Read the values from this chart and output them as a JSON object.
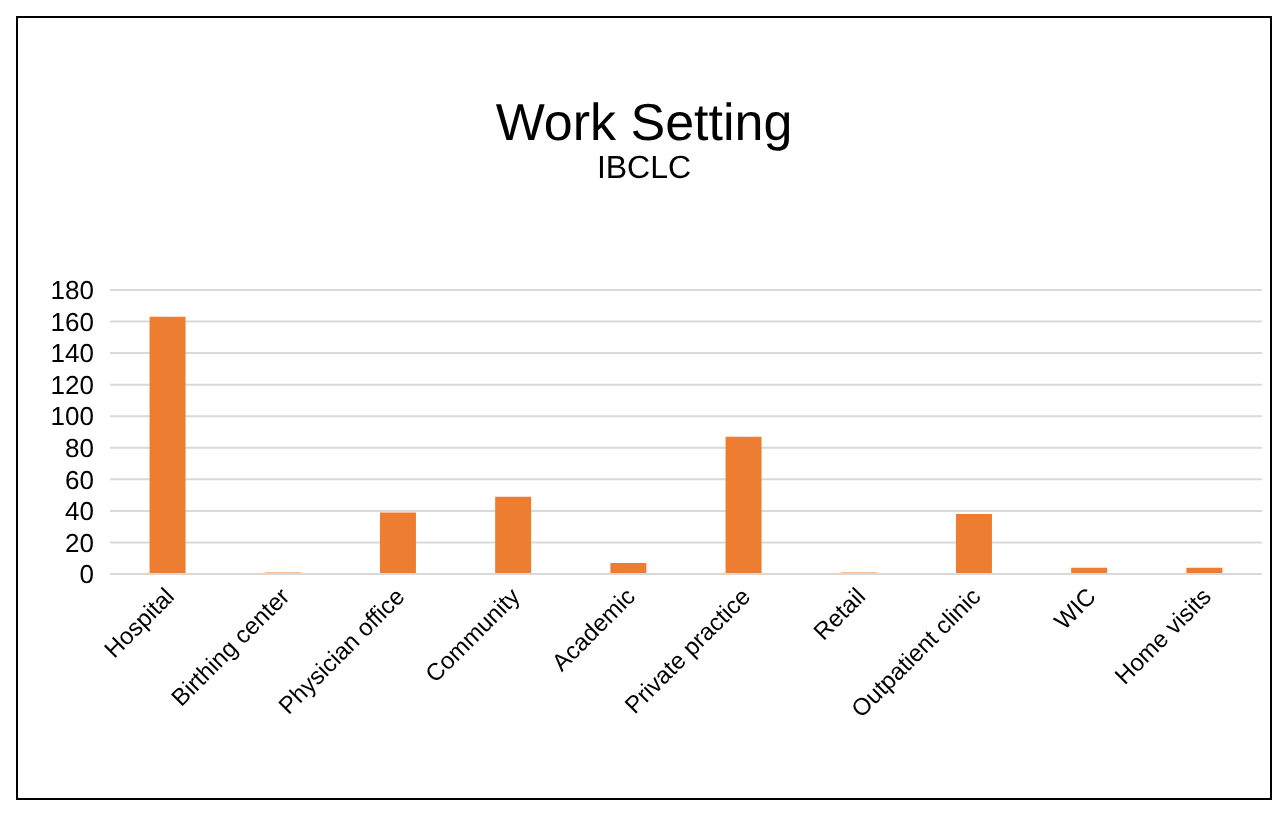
{
  "chart_data": {
    "type": "bar",
    "title": "Work Setting",
    "subtitle": "IBCLC",
    "categories": [
      "Hospital",
      "Birthing center",
      "Physician office",
      "Community",
      "Academic",
      "Private practice",
      "Retail",
      "Outpatient clinic",
      "WIC",
      "Home visits"
    ],
    "values": [
      163,
      1,
      39,
      49,
      7,
      87,
      1,
      38,
      4,
      4
    ],
    "color": "#ed7d31",
    "ylim": [
      0,
      180
    ],
    "yticks": [
      0,
      20,
      40,
      60,
      80,
      100,
      120,
      140,
      160,
      180
    ],
    "grid": "y"
  }
}
